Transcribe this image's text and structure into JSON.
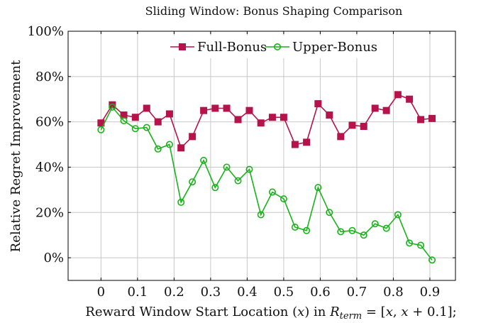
{
  "chart_data": {
    "type": "line",
    "title": "Sliding Window: Bonus Shaping Comparison",
    "xlabel": "Reward Window Start Location (x) in R_term = [x, x + 0.1];",
    "xlabel_parts": {
      "prefix": "Reward Window Start Location (",
      "var": "x",
      "mid": ") in ",
      "R": "R",
      "sub": "term",
      "eq": " = [",
      "x1": "x",
      "comma": ", ",
      "x2": "x",
      "plus": " + 0.1];"
    },
    "ylabel": "Relative Regret Improvement",
    "xlim": [
      -0.09,
      0.97
    ],
    "ylim": [
      -10,
      100
    ],
    "x_ticks": [
      0,
      0.1,
      0.2,
      0.3,
      0.4,
      0.5,
      0.6,
      0.7,
      0.8,
      0.9
    ],
    "x_tick_labels": [
      "0",
      "0.1",
      "0.2",
      "0.3",
      "0.4",
      "0.5",
      "0.6",
      "0.7",
      "0.8",
      "0.9"
    ],
    "y_ticks": [
      0,
      20,
      40,
      60,
      80,
      100
    ],
    "y_tick_labels": [
      "0%",
      "20%",
      "40%",
      "60%",
      "80%",
      "100%"
    ],
    "grid": true,
    "legend_position": "top-center",
    "x": [
      0,
      0.031,
      0.0625,
      0.094,
      0.125,
      0.156,
      0.1875,
      0.219,
      0.25,
      0.281,
      0.3125,
      0.344,
      0.375,
      0.406,
      0.4375,
      0.469,
      0.5,
      0.531,
      0.5625,
      0.594,
      0.625,
      0.656,
      0.6875,
      0.719,
      0.75,
      0.781,
      0.8125,
      0.844,
      0.875,
      0.906
    ],
    "series": [
      {
        "name": "Full-Bonus",
        "color": "#b5134b",
        "marker": "square",
        "values": [
          59.5,
          67.5,
          63,
          62,
          66,
          60,
          63.5,
          48.5,
          53.5,
          65,
          66,
          66,
          61,
          65,
          59.5,
          62,
          62,
          50,
          51,
          68,
          63,
          53.5,
          58.5,
          58,
          66,
          65,
          72,
          70,
          61,
          61.5
        ]
      },
      {
        "name": "Upper-Bonus",
        "color": "#19b219",
        "marker": "circle",
        "values": [
          56.5,
          66.5,
          60.5,
          57,
          57.5,
          48,
          50,
          24.5,
          33.5,
          43,
          31,
          40,
          34,
          39,
          19,
          29,
          26,
          13.5,
          12,
          31,
          20,
          11.5,
          12,
          10,
          15,
          13,
          19,
          6.5,
          5.5,
          -1
        ]
      }
    ]
  }
}
